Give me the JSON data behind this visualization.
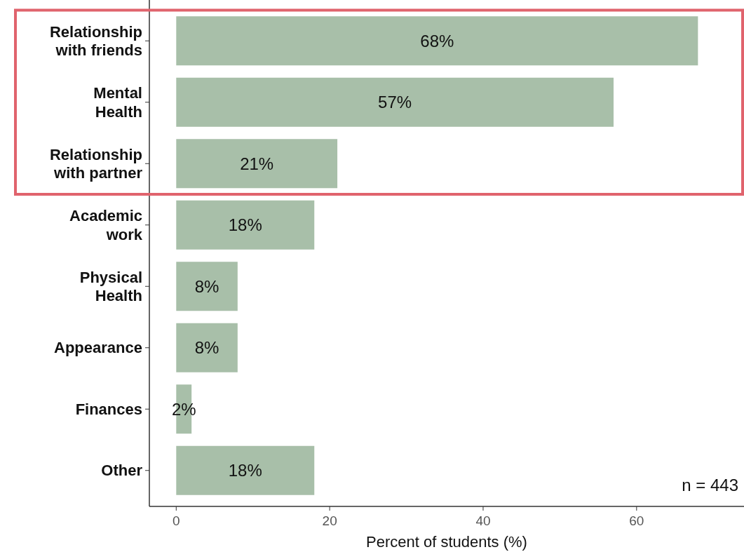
{
  "chart_data": {
    "type": "bar",
    "orientation": "horizontal",
    "categories": [
      "Relationship with friends",
      "Mental Health",
      "Relationship with partner",
      "Academic work",
      "Physical Health",
      "Appearance",
      "Finances",
      "Other"
    ],
    "values": [
      68,
      57,
      21,
      18,
      8,
      8,
      2,
      18
    ],
    "value_labels": [
      "68%",
      "57%",
      "21%",
      "18%",
      "8%",
      "8%",
      "2%",
      "18%"
    ],
    "color": "#a8bfa9",
    "xlim": [
      -3.5,
      74
    ],
    "xticks": [
      0,
      20,
      40,
      60
    ],
    "xlabel": "Percent of students (%)",
    "annotations": [
      "n = 443"
    ],
    "grid": false
  }
}
